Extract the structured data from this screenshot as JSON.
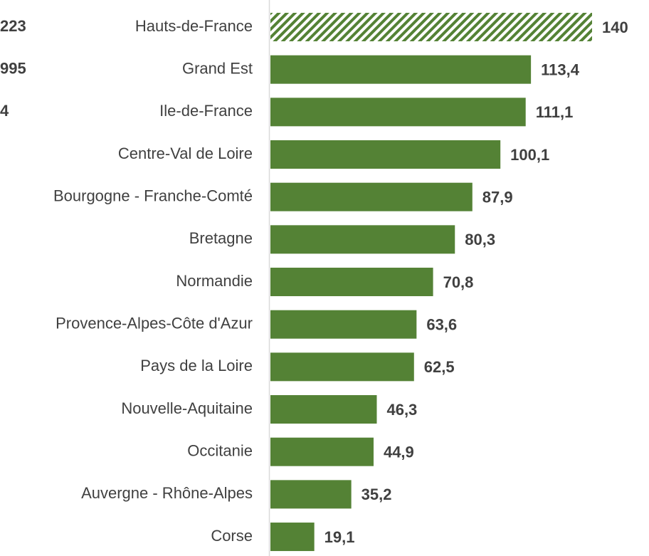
{
  "chart_data": {
    "type": "barh",
    "categories": [
      "Hauts-de-France",
      "Grand Est",
      "Ile-de-France",
      "Centre-Val de Loire",
      "Bourgogne - Franche-Comté",
      "Bretagne",
      "Normandie",
      "Provence-Alpes-Côte d'Azur",
      "Pays de la Loire",
      "Nouvelle-Aquitaine",
      "Occitanie",
      "Auvergne - Rhône-Alpes",
      "Corse"
    ],
    "values": [
      140,
      113.4,
      111.1,
      100.1,
      87.9,
      80.3,
      70.8,
      63.6,
      62.5,
      46.3,
      44.9,
      35.2,
      19.1
    ],
    "value_labels": [
      "140",
      "113,4",
      "111,1",
      "100,1",
      "87,9",
      "80,3",
      "70,8",
      "63,6",
      "62,5",
      "46,3",
      "44,9",
      "35,2",
      "19,1"
    ],
    "fill_styles": [
      "hatch",
      "solid",
      "solid",
      "solid",
      "solid",
      "solid",
      "solid",
      "solid",
      "solid",
      "solid",
      "solid",
      "solid",
      "solid"
    ],
    "color": "#548235",
    "xlim": [
      0,
      140
    ],
    "annotations": [
      "223",
      "995",
      "4"
    ]
  }
}
